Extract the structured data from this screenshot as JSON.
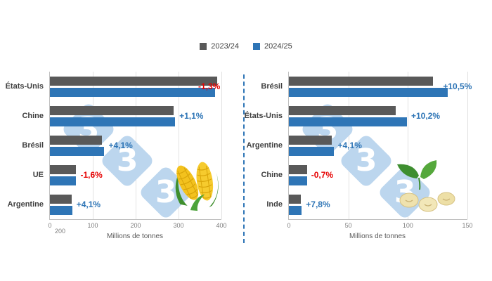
{
  "legend": {
    "series": [
      {
        "label": "2023/24",
        "color": "#595959"
      },
      {
        "label": "2024/25",
        "color": "#2E75B6"
      }
    ]
  },
  "colors": {
    "series1": "#595959",
    "series2": "#2E75B6",
    "positive": "#2E75B6",
    "negative": "#E60000",
    "watermark": "#BCD6EE",
    "divider": "#2E75B6"
  },
  "watermark": {
    "text": "3"
  },
  "chart_data": [
    {
      "type": "bar",
      "orientation": "horizontal",
      "commodity": "corn",
      "categories": [
        "États-Unis",
        "Chine",
        "Brésil",
        "UE",
        "Argentine"
      ],
      "series": [
        {
          "name": "2023/24",
          "values": [
            389.7,
            288.8,
            122,
            61.4,
            50
          ]
        },
        {
          "name": "2024/25",
          "values": [
            384.6,
            292,
            127,
            60.4,
            52
          ]
        }
      ],
      "change_labels": [
        "-1,3%",
        "+1,1%",
        "+4,1%",
        "-1,6%",
        "+4,1%"
      ],
      "xlabel": "Millions de tonnes",
      "xlim": [
        0,
        400
      ],
      "axis_ticks": [
        0,
        100,
        200,
        300,
        400
      ],
      "extra_axis_label": "200",
      "grid": true,
      "legend_position": "top-center"
    },
    {
      "type": "bar",
      "orientation": "horizontal",
      "commodity": "soybean",
      "categories": [
        "Brésil",
        "États-Unis",
        "Argentine",
        "Chine",
        "Inde"
      ],
      "series": [
        {
          "name": "2023/24",
          "values": [
            121,
            90,
            36,
            15.2,
            10
          ]
        },
        {
          "name": "2024/25",
          "values": [
            133.7,
            99.2,
            37.5,
            15.1,
            10.8
          ]
        }
      ],
      "change_labels": [
        "+10,5%",
        "+10,2%",
        "+4,1%",
        "-0,7%",
        "+7,8%"
      ],
      "xlabel": "Millions de tonnes",
      "xlim": [
        0,
        150
      ],
      "axis_ticks": [
        0,
        50,
        100,
        150
      ],
      "grid": true,
      "legend_position": "top-center"
    }
  ]
}
